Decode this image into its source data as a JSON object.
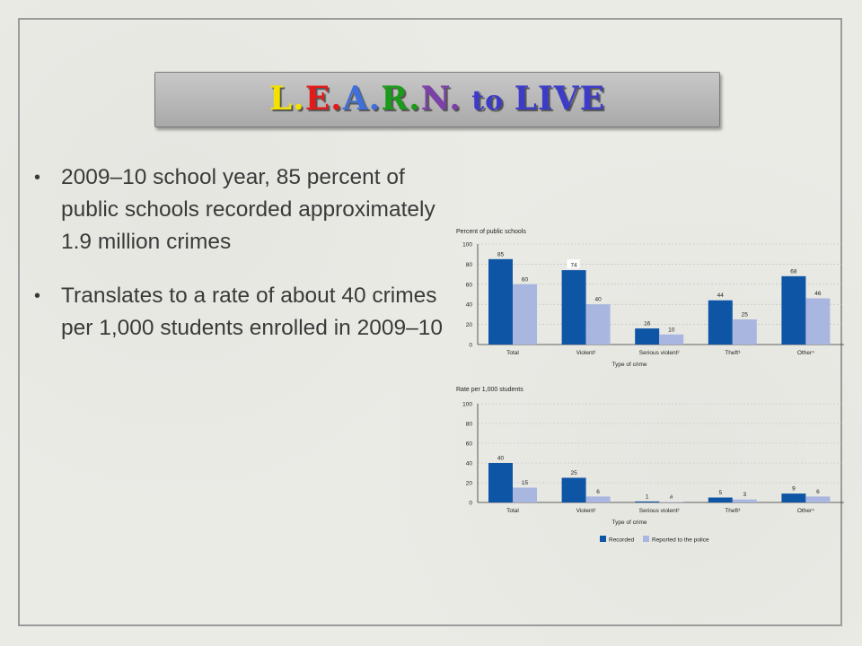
{
  "slide": {
    "title": [
      {
        "text": "L",
        "color": "#f2e200"
      },
      {
        "text": ".",
        "color": "#f2e200"
      },
      {
        "text": "E",
        "color": "#e31a1a"
      },
      {
        "text": ".",
        "color": "#e31a1a"
      },
      {
        "text": "A",
        "color": "#3f6fd8"
      },
      {
        "text": ".",
        "color": "#3f6fd8"
      },
      {
        "text": "R",
        "color": "#1a9b1a"
      },
      {
        "text": ".",
        "color": "#1a9b1a"
      },
      {
        "text": "N",
        "color": "#7d3fa8"
      },
      {
        "text": ".",
        "color": "#7d3fa8"
      },
      {
        "text": " to ",
        "color": "#3c3cc8"
      },
      {
        "text": "LIVE",
        "color": "#3c3cc8"
      }
    ],
    "bullets": [
      "2009–10 school year, 85 percent of public schools recorded approximately 1.9 million crimes",
      "Translates to a rate of about 40 crimes per 1,000 students enrolled in 2009–10"
    ],
    "bullet_glyph": "•"
  },
  "chart_data": [
    {
      "type": "bar",
      "title": "Percent of public schools",
      "xlabel": "Type of crime",
      "categories": [
        "Total",
        "Violent¹",
        "Serious violent²",
        "Theft³",
        "Other⁴"
      ],
      "series": [
        {
          "name": "Recorded",
          "values": [
            85,
            74,
            16,
            44,
            68
          ],
          "labels": [
            "85",
            "74",
            "16",
            "44",
            "68"
          ]
        },
        {
          "name": "Reported to the police",
          "values": [
            60,
            40,
            10,
            25,
            46
          ],
          "labels": [
            "60",
            "40",
            "10",
            "25",
            "46"
          ]
        }
      ],
      "ylim": [
        0,
        100
      ],
      "yticks": [
        0,
        20,
        40,
        60,
        80,
        100
      ],
      "grid": true
    },
    {
      "type": "bar",
      "title": "Rate per 1,000 students",
      "xlabel": "Type of crime",
      "categories": [
        "Total",
        "Violent¹",
        "Serious violent²",
        "Theft³",
        "Other⁴"
      ],
      "series": [
        {
          "name": "Recorded",
          "values": [
            40,
            25,
            1,
            5,
            9
          ],
          "labels": [
            "40",
            "25",
            "1",
            "5",
            "9"
          ]
        },
        {
          "name": "Reported to the police",
          "values": [
            15,
            6,
            0.4,
            3,
            6
          ],
          "labels": [
            "15",
            "6",
            "#",
            "3",
            "6"
          ]
        }
      ],
      "ylim": [
        0,
        100
      ],
      "yticks": [
        0,
        20,
        40,
        60,
        80,
        100
      ],
      "grid": true
    }
  ],
  "legend": {
    "items": [
      {
        "label": "Recorded",
        "color": "#0f55a6"
      },
      {
        "label": "Reported to the police",
        "color": "#a9b6e0"
      }
    ],
    "position": "bottom-center"
  },
  "colors": {
    "recorded": "#0f55a6",
    "reported": "#a9b6e0",
    "grid": "#b9b9b9"
  }
}
